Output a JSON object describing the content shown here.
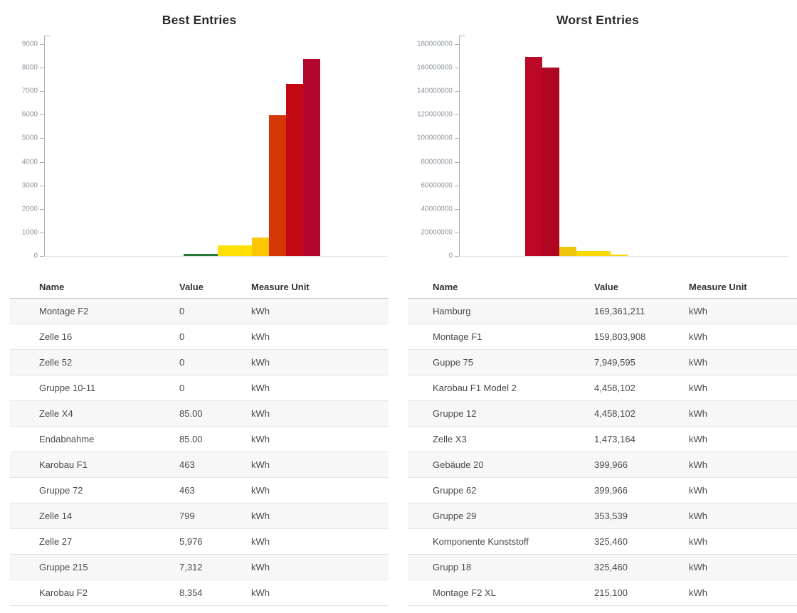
{
  "page": {
    "background": "#ffffff",
    "value_unit": "kWh"
  },
  "panels": [
    {
      "title": "Best Entries",
      "table": {
        "headers": [
          "Name",
          "Value",
          "Measure Unit"
        ],
        "rows": [
          {
            "name": "Montage F2",
            "value": "0",
            "unit": "kWh",
            "color": "#1C4A33"
          },
          {
            "name": "Zelle 16",
            "value": "0",
            "unit": "kWh",
            "color": "#1C4A33"
          },
          {
            "name": "Zelle 52",
            "value": "0",
            "unit": "kWh",
            "color": "#1C4A33"
          },
          {
            "name": "Gruppe 10-11",
            "value": "0",
            "unit": "kWh",
            "color": "#1C4A33"
          },
          {
            "name": "Zelle X4",
            "value": "85.00",
            "unit": "kWh",
            "color": "#217B36"
          },
          {
            "name": "Endabnahme",
            "value": "85.00",
            "unit": "kWh",
            "color": "#217B36"
          },
          {
            "name": "Karobau F1",
            "value": "463",
            "unit": "kWh",
            "color": "#FBE105"
          },
          {
            "name": "Gruppe 72",
            "value": "463",
            "unit": "kWh",
            "color": "#FBE105"
          },
          {
            "name": "Zelle 14",
            "value": "799",
            "unit": "kWh",
            "color": "#F9C802"
          },
          {
            "name": "Zelle 27",
            "value": "5,976",
            "unit": "kWh",
            "color": "#D93A06"
          },
          {
            "name": "Gruppe 215",
            "value": "7,312",
            "unit": "kWh",
            "color": "#C50714"
          },
          {
            "name": "Karobau F2",
            "value": "8,354",
            "unit": "kWh",
            "color": "#B2062E"
          }
        ]
      }
    },
    {
      "title": "Worst Entries",
      "table": {
        "headers": [
          "Name",
          "Value",
          "Measure Unit"
        ],
        "rows": [
          {
            "name": "Hamburg",
            "value": "169,361,211",
            "unit": "kWh",
            "color": "#BC0726"
          },
          {
            "name": "Montage F1",
            "value": "159,803,908",
            "unit": "kWh",
            "color": "#AE0621"
          },
          {
            "name": "Guppe 75",
            "value": "7,949,595",
            "unit": "kWh",
            "color": "#F0C60E"
          },
          {
            "name": "Karobau F1 Model 2",
            "value": "4,458,102",
            "unit": "kWh",
            "color": "#F7D50A"
          },
          {
            "name": "Gruppe 12",
            "value": "4,458,102",
            "unit": "kWh",
            "color": "#F7D50A"
          },
          {
            "name": "Zelle X3",
            "value": "1,473,164",
            "unit": "kWh",
            "color": "#F8D806"
          },
          {
            "name": "Gebäude 20",
            "value": "399,966",
            "unit": "kWh",
            "color": "#F6D90B"
          },
          {
            "name": "Gruppe 62",
            "value": "399,966",
            "unit": "kWh",
            "color": "#F6D90B"
          },
          {
            "name": "Gruppe 29",
            "value": "353,539",
            "unit": "kWh",
            "color": "#85BB1E"
          },
          {
            "name": "Komponente Kunststoff",
            "value": "325,460",
            "unit": "kWh",
            "color": "#55A528"
          },
          {
            "name": "Grupp 18",
            "value": "325,460",
            "unit": "kWh",
            "color": "#55A528"
          },
          {
            "name": "Montage F2 XL",
            "value": "215,100",
            "unit": "kWh",
            "color": "#1C4A33"
          }
        ]
      }
    }
  ],
  "chart_data": [
    {
      "type": "bar",
      "title": "Best Entries",
      "categories": [
        "Montage F2",
        "Zelle 16",
        "Zelle 52",
        "Gruppe 10-11",
        "Zelle X4",
        "Endabnahme",
        "Karobau F1",
        "Gruppe 72",
        "Zelle 14",
        "Zelle 27",
        "Gruppe 215",
        "Karobau F2"
      ],
      "values": [
        0,
        0,
        0,
        0,
        85,
        85,
        463,
        463,
        799,
        5976,
        7312,
        8354
      ],
      "colors": [
        "#1C4A33",
        "#1C4A33",
        "#1C4A33",
        "#1C4A33",
        "#217B36",
        "#217B36",
        "#FFE005",
        "#FFE005",
        "#FBC703",
        "#D63506",
        "#C30713",
        "#B2062E"
      ],
      "xlabel": "",
      "ylabel": "",
      "unit": "kWh",
      "ylim": [
        0,
        9000
      ],
      "yticks": [
        0,
        1000,
        2000,
        3000,
        4000,
        5000,
        6000,
        7000,
        8000,
        9000
      ],
      "grid": false,
      "legend": "none"
    },
    {
      "type": "bar",
      "title": "Worst Entries",
      "categories": [
        "Hamburg",
        "Montage F1",
        "Guppe 75",
        "Karobau F1 Model 2",
        "Gruppe 12",
        "Zelle X3",
        "Gebäude 20",
        "Gruppe 62",
        "Gruppe 29",
        "Komponente Kunststoff",
        "Grupp 18",
        "Montage F2 XL"
      ],
      "values": [
        169361211,
        159803908,
        7949595,
        4458102,
        4458102,
        1473164,
        399966,
        399966,
        353539,
        325460,
        325460,
        215100
      ],
      "colors": [
        "#BC0726",
        "#AE0621",
        "#F0C60E",
        "#F8D806",
        "#F8D806",
        "#F8D806",
        "#F6D90B",
        "#F6D90B",
        "#85BB1E",
        "#55A528",
        "#55A528",
        "#1C4A33"
      ],
      "xlabel": "",
      "ylabel": "",
      "unit": "kWh",
      "ylim": [
        0,
        180000000
      ],
      "yticks": [
        0,
        20000000,
        40000000,
        60000000,
        80000000,
        100000000,
        120000000,
        140000000,
        160000000,
        180000000
      ],
      "grid": false,
      "legend": "none"
    }
  ]
}
